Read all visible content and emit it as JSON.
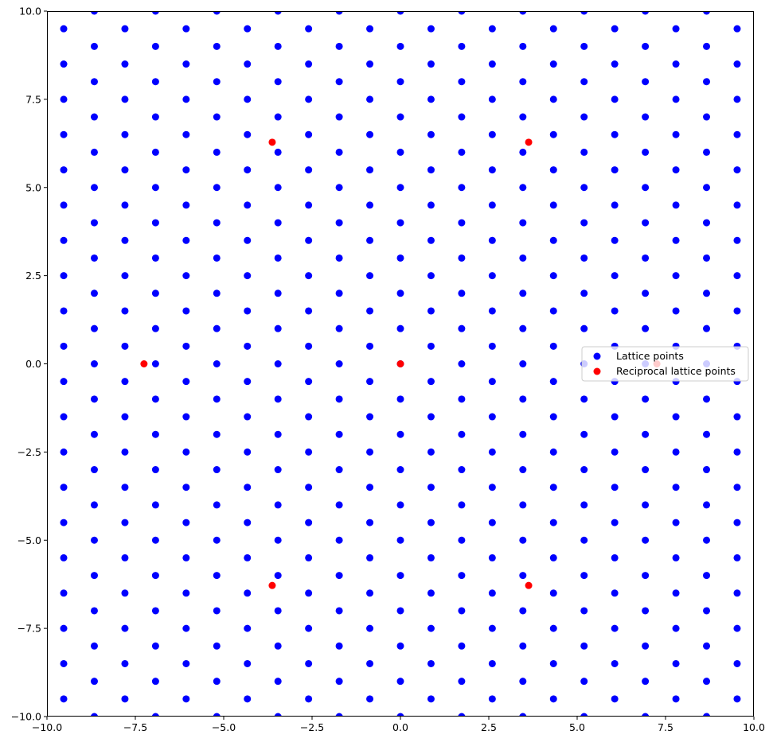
{
  "chart_data": {
    "type": "scatter",
    "title": "",
    "xlabel": "",
    "ylabel": "",
    "xlim": [
      -10,
      10
    ],
    "ylim": [
      -10,
      10
    ],
    "grid": false,
    "legend_position": "center-right",
    "x_ticks": [
      -10.0,
      -7.5,
      -5.0,
      -2.5,
      0.0,
      2.5,
      5.0,
      7.5,
      10.0
    ],
    "y_ticks": [
      -10.0,
      -7.5,
      -5.0,
      -2.5,
      0.0,
      2.5,
      5.0,
      7.5,
      10.0
    ],
    "x_tick_labels": [
      "−10.0",
      "−7.5",
      "−5.0",
      "−2.5",
      "0.0",
      "2.5",
      "5.0",
      "7.5",
      "10.0"
    ],
    "y_tick_labels": [
      "−10.0",
      "−7.5",
      "−5.0",
      "−2.5",
      "0.0",
      "2.5",
      "5.0",
      "7.5",
      "10.0"
    ],
    "series": [
      {
        "name": "Lattice points",
        "color": "#0000ff",
        "lattice": {
          "a1": [
            0.8660254,
            0.5
          ],
          "a2": [
            0.0,
            1.0
          ],
          "n1_range": [
            -12,
            12
          ],
          "n2_range": [
            -18,
            18
          ]
        }
      },
      {
        "name": "Reciprocal lattice points",
        "color": "#ff0000",
        "points": [
          [
            0.0,
            0.0
          ],
          [
            -7.2552,
            0.0
          ],
          [
            7.2552,
            0.0
          ],
          [
            -3.6276,
            6.2832
          ],
          [
            3.6276,
            6.2832
          ],
          [
            -3.6276,
            -6.2832
          ],
          [
            3.6276,
            -6.2832
          ]
        ]
      }
    ]
  }
}
